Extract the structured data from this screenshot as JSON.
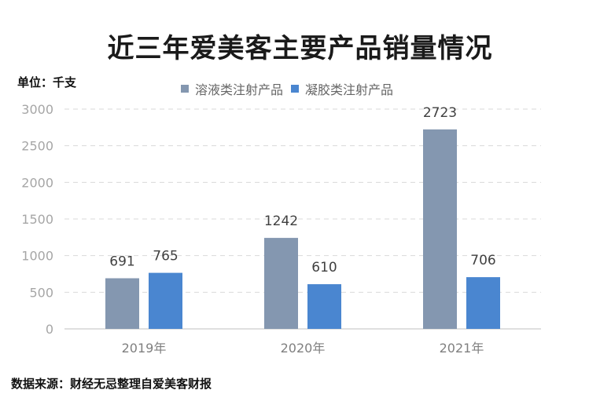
{
  "page": {
    "title": "近三年爱美客主要产品销量情况",
    "unit": "单位：千支",
    "source": "数据来源：财经无忌整理自爱美客财报"
  },
  "chart_data": {
    "type": "bar",
    "title": "近三年爱美客主要产品销量情况",
    "categories": [
      "2019年",
      "2020年",
      "2021年"
    ],
    "series": [
      {
        "name": "溶液类注射产品",
        "values": [
          691,
          1242,
          2723
        ],
        "color": "#8497b0"
      },
      {
        "name": "凝胶类注射产品",
        "values": [
          765,
          610,
          706
        ],
        "color": "#4a86d0"
      }
    ],
    "ylabel": "",
    "ylim": [
      0,
      3000
    ],
    "yticks": [
      0,
      500,
      1000,
      1500,
      2000,
      2500,
      3000
    ],
    "grid": true,
    "legend": "top-center",
    "data_labels": true
  }
}
